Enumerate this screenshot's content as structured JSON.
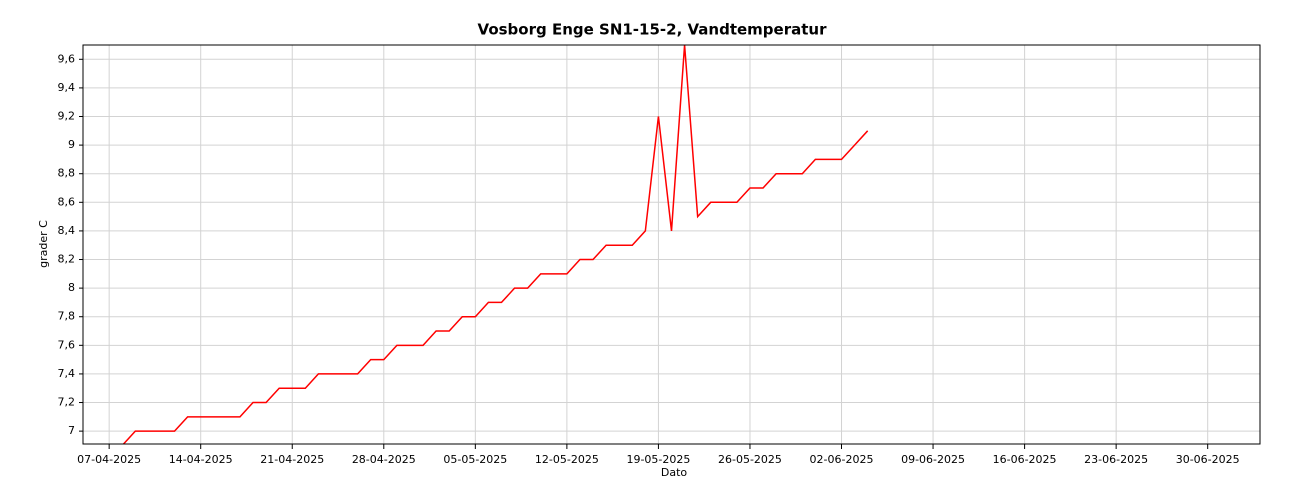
{
  "chart_data": {
    "type": "line",
    "title": "Vosborg Enge SN1-15-2, Vandtemperatur",
    "xlabel": "Dato",
    "ylabel": "grader C",
    "x": [
      "05-04-2025",
      "06-04-2025",
      "07-04-2025",
      "08-04-2025",
      "09-04-2025",
      "10-04-2025",
      "11-04-2025",
      "12-04-2025",
      "13-04-2025",
      "14-04-2025",
      "15-04-2025",
      "16-04-2025",
      "17-04-2025",
      "18-04-2025",
      "19-04-2025",
      "20-04-2025",
      "21-04-2025",
      "22-04-2025",
      "23-04-2025",
      "24-04-2025",
      "25-04-2025",
      "26-04-2025",
      "27-04-2025",
      "28-04-2025",
      "29-04-2025",
      "30-04-2025",
      "01-05-2025",
      "02-05-2025",
      "03-05-2025",
      "04-05-2025",
      "05-05-2025",
      "06-05-2025",
      "07-05-2025",
      "08-05-2025",
      "09-05-2025",
      "10-05-2025",
      "11-05-2025",
      "12-05-2025",
      "13-05-2025",
      "14-05-2025",
      "15-05-2025",
      "16-05-2025",
      "17-05-2025",
      "18-05-2025",
      "19-05-2025",
      "20-05-2025",
      "21-05-2025",
      "22-05-2025",
      "23-05-2025",
      "24-05-2025",
      "25-05-2025",
      "26-05-2025",
      "27-05-2025",
      "28-05-2025",
      "29-05-2025",
      "30-05-2025",
      "31-05-2025",
      "01-06-2025",
      "02-06-2025",
      "03-06-2025",
      "04-06-2025"
    ],
    "values": [
      6.9,
      6.9,
      6.9,
      6.9,
      7.0,
      7.0,
      7.0,
      7.0,
      7.1,
      7.1,
      7.1,
      7.1,
      7.1,
      7.2,
      7.2,
      7.3,
      7.3,
      7.3,
      7.4,
      7.4,
      7.4,
      7.4,
      7.5,
      7.5,
      7.6,
      7.6,
      7.6,
      7.7,
      7.7,
      7.8,
      7.8,
      7.9,
      7.9,
      8.0,
      8.0,
      8.1,
      8.1,
      8.1,
      8.2,
      8.2,
      8.3,
      8.3,
      8.3,
      8.4,
      9.2,
      8.4,
      9.7,
      8.5,
      8.6,
      8.6,
      8.6,
      8.7,
      8.7,
      8.8,
      8.8,
      8.8,
      8.9,
      8.9,
      8.9,
      9.0,
      9.1
    ],
    "color": "#ff0000",
    "xlim": [
      "05-04-2025",
      "04-07-2025"
    ],
    "xticks": [
      "07-04-2025",
      "14-04-2025",
      "21-04-2025",
      "28-04-2025",
      "05-05-2025",
      "12-05-2025",
      "19-05-2025",
      "26-05-2025",
      "02-06-2025",
      "09-06-2025",
      "16-06-2025",
      "23-06-2025",
      "30-06-2025"
    ],
    "ylim": [
      6.91,
      9.7
    ],
    "yticks": [
      7,
      {
        "value": 7.2,
        "label": "7,2"
      },
      {
        "value": 7.4,
        "label": "7,4"
      },
      {
        "value": 7.6,
        "label": "7,6"
      },
      {
        "value": 7.8,
        "label": "7,8"
      },
      8,
      {
        "value": 8.2,
        "label": "8,2"
      },
      {
        "value": 8.4,
        "label": "8,4"
      },
      {
        "value": 8.6,
        "label": "8,6"
      },
      {
        "value": 8.8,
        "label": "8,8"
      },
      9,
      {
        "value": 9.2,
        "label": "9,2"
      },
      {
        "value": 9.4,
        "label": "9,4"
      },
      {
        "value": 9.6,
        "label": "9,6"
      }
    ],
    "grid": true
  }
}
